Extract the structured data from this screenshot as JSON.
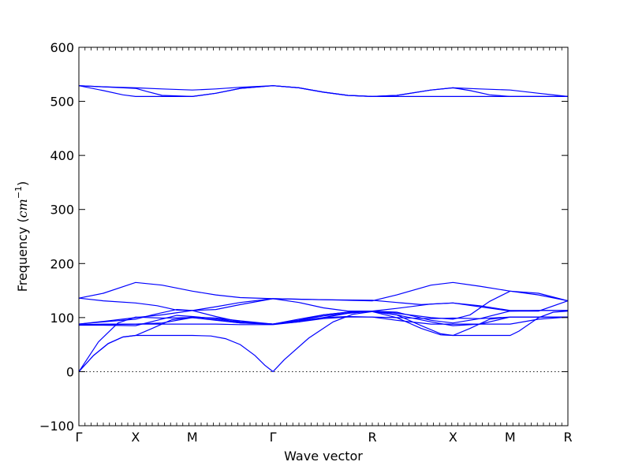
{
  "chart_data": {
    "type": "line",
    "title": "",
    "xlabel": "Wave vector",
    "ylabel_text": "Frequency (",
    "ylabel_unit": "cm",
    "ylabel_exp": "−1",
    "ylabel_close": ")",
    "ylim": [
      -100,
      600
    ],
    "yticks": [
      -100,
      0,
      100,
      200,
      300,
      400,
      500,
      600
    ],
    "ytick_labels": [
      "−100",
      "0",
      "100",
      "200",
      "300",
      "400",
      "500",
      "600"
    ],
    "xlim": [
      0,
      1
    ],
    "x_points": [
      {
        "x": 0.0,
        "label": "Γ"
      },
      {
        "x": 0.116,
        "label": "X"
      },
      {
        "x": 0.232,
        "label": "M"
      },
      {
        "x": 0.397,
        "label": "Γ"
      },
      {
        "x": 0.6,
        "label": "R"
      },
      {
        "x": 0.765,
        "label": "X"
      },
      {
        "x": 0.882,
        "label": "M"
      },
      {
        "x": 1.0,
        "label": "R"
      }
    ],
    "zero_line": true,
    "line_color": "#0000ff",
    "series": [
      {
        "values": [
          [
            0.0,
            529
          ],
          [
            0.05,
            527
          ],
          [
            0.116,
            525
          ],
          [
            0.17,
            523
          ],
          [
            0.232,
            521
          ],
          [
            0.28,
            523
          ],
          [
            0.33,
            526
          ],
          [
            0.397,
            529
          ],
          [
            0.45,
            525
          ],
          [
            0.5,
            517
          ],
          [
            0.55,
            511
          ],
          [
            0.6,
            509
          ],
          [
            0.65,
            511
          ],
          [
            0.72,
            521
          ],
          [
            0.765,
            525
          ],
          [
            0.82,
            523
          ],
          [
            0.882,
            521
          ],
          [
            0.94,
            515
          ],
          [
            1.0,
            509
          ]
        ]
      },
      {
        "values": [
          [
            0.0,
            529
          ],
          [
            0.05,
            527
          ],
          [
            0.116,
            524
          ],
          [
            0.14,
            518
          ],
          [
            0.17,
            511
          ],
          [
            0.232,
            509
          ],
          [
            0.28,
            515
          ],
          [
            0.33,
            524
          ],
          [
            0.397,
            529
          ],
          [
            0.45,
            525
          ],
          [
            0.5,
            517
          ],
          [
            0.55,
            511
          ],
          [
            0.6,
            509
          ],
          [
            0.65,
            511
          ],
          [
            0.72,
            521
          ],
          [
            0.765,
            525
          ],
          [
            0.8,
            520
          ],
          [
            0.84,
            512
          ],
          [
            0.882,
            509
          ],
          [
            0.94,
            509
          ],
          [
            1.0,
            509
          ]
        ]
      },
      {
        "values": [
          [
            0.0,
            529
          ],
          [
            0.05,
            520
          ],
          [
            0.09,
            512
          ],
          [
            0.116,
            509
          ],
          [
            0.17,
            509
          ],
          [
            0.232,
            509
          ],
          [
            0.28,
            515
          ],
          [
            0.33,
            524
          ],
          [
            0.397,
            529
          ],
          [
            0.45,
            525
          ],
          [
            0.5,
            517
          ],
          [
            0.55,
            511
          ],
          [
            0.6,
            509
          ],
          [
            0.765,
            509
          ],
          [
            0.882,
            509
          ],
          [
            1.0,
            509
          ]
        ]
      },
      {
        "values": [
          [
            0.0,
            136
          ],
          [
            0.05,
            145
          ],
          [
            0.116,
            165
          ],
          [
            0.17,
            160
          ],
          [
            0.232,
            149
          ],
          [
            0.28,
            142
          ],
          [
            0.33,
            137
          ],
          [
            0.397,
            135
          ],
          [
            0.5,
            133
          ],
          [
            0.6,
            131
          ],
          [
            0.65,
            142
          ],
          [
            0.72,
            160
          ],
          [
            0.765,
            165
          ],
          [
            0.82,
            158
          ],
          [
            0.882,
            149
          ],
          [
            0.94,
            142
          ],
          [
            1.0,
            131
          ]
        ]
      },
      {
        "values": [
          [
            0.0,
            136
          ],
          [
            0.05,
            131
          ],
          [
            0.116,
            127
          ],
          [
            0.16,
            122
          ],
          [
            0.2,
            114
          ],
          [
            0.232,
            113
          ],
          [
            0.28,
            115
          ],
          [
            0.33,
            124
          ],
          [
            0.397,
            135
          ],
          [
            0.5,
            133
          ],
          [
            0.6,
            132
          ],
          [
            0.65,
            128
          ],
          [
            0.7,
            124
          ],
          [
            0.765,
            127
          ],
          [
            0.82,
            122
          ],
          [
            0.882,
            113
          ],
          [
            0.94,
            113
          ],
          [
            1.0,
            113
          ]
        ]
      },
      {
        "values": [
          [
            0.0,
            88
          ],
          [
            0.05,
            93
          ],
          [
            0.116,
            100
          ],
          [
            0.17,
            105
          ],
          [
            0.232,
            113
          ],
          [
            0.28,
            120
          ],
          [
            0.33,
            128
          ],
          [
            0.397,
            135
          ],
          [
            0.45,
            128
          ],
          [
            0.5,
            118
          ],
          [
            0.55,
            112
          ],
          [
            0.6,
            112
          ],
          [
            0.65,
            117
          ],
          [
            0.72,
            125
          ],
          [
            0.765,
            127
          ],
          [
            0.82,
            120
          ],
          [
            0.882,
            112
          ],
          [
            0.94,
            112
          ],
          [
            1.0,
            131
          ]
        ]
      },
      {
        "values": [
          [
            0.0,
            88
          ],
          [
            0.05,
            92
          ],
          [
            0.116,
            97
          ],
          [
            0.15,
            105
          ],
          [
            0.2,
            115
          ],
          [
            0.232,
            113
          ],
          [
            0.28,
            102
          ],
          [
            0.33,
            92
          ],
          [
            0.397,
            88
          ],
          [
            0.45,
            97
          ],
          [
            0.5,
            105
          ],
          [
            0.55,
            110
          ],
          [
            0.6,
            112
          ],
          [
            0.65,
            108
          ],
          [
            0.72,
            100
          ],
          [
            0.765,
            97
          ],
          [
            0.8,
            105
          ],
          [
            0.84,
            130
          ],
          [
            0.882,
            149
          ],
          [
            0.94,
            145
          ],
          [
            1.0,
            131
          ]
        ]
      },
      {
        "values": [
          [
            0.0,
            86
          ],
          [
            0.05,
            86
          ],
          [
            0.116,
            85
          ],
          [
            0.16,
            95
          ],
          [
            0.2,
            104
          ],
          [
            0.232,
            102
          ],
          [
            0.28,
            98
          ],
          [
            0.33,
            91
          ],
          [
            0.397,
            88
          ],
          [
            0.45,
            92
          ],
          [
            0.5,
            100
          ],
          [
            0.55,
            108
          ],
          [
            0.6,
            112
          ],
          [
            0.65,
            105
          ],
          [
            0.72,
            92
          ],
          [
            0.765,
            85
          ],
          [
            0.82,
            88
          ],
          [
            0.882,
            101
          ],
          [
            1.0,
            101
          ]
        ]
      },
      {
        "values": [
          [
            0.0,
            87
          ],
          [
            0.05,
            88
          ],
          [
            0.116,
            88
          ],
          [
            0.17,
            90
          ],
          [
            0.232,
            100
          ],
          [
            0.28,
            95
          ],
          [
            0.33,
            90
          ],
          [
            0.397,
            88
          ],
          [
            0.45,
            94
          ],
          [
            0.5,
            100
          ],
          [
            0.55,
            102
          ],
          [
            0.6,
            101
          ],
          [
            0.65,
            100
          ],
          [
            0.72,
            98
          ],
          [
            0.765,
            99
          ],
          [
            0.82,
            98
          ],
          [
            0.882,
            101
          ],
          [
            1.0,
            101
          ]
        ]
      },
      {
        "values": [
          [
            0.0,
            87
          ],
          [
            0.05,
            87
          ],
          [
            0.116,
            88
          ],
          [
            0.17,
            88
          ],
          [
            0.232,
            88
          ],
          [
            0.28,
            88
          ],
          [
            0.33,
            87
          ],
          [
            0.397,
            87
          ],
          [
            0.45,
            92
          ],
          [
            0.5,
            98
          ],
          [
            0.55,
            101
          ],
          [
            0.6,
            101
          ],
          [
            0.65,
            95
          ],
          [
            0.72,
            88
          ],
          [
            0.765,
            88
          ],
          [
            0.82,
            88
          ],
          [
            0.882,
            88
          ],
          [
            0.94,
            97
          ],
          [
            1.0,
            101
          ]
        ]
      },
      {
        "values": [
          [
            0.0,
            0
          ],
          [
            0.03,
            30
          ],
          [
            0.06,
            52
          ],
          [
            0.09,
            64
          ],
          [
            0.116,
            67
          ],
          [
            0.15,
            80
          ],
          [
            0.19,
            96
          ],
          [
            0.232,
            101
          ],
          [
            0.28,
            99
          ],
          [
            0.33,
            94
          ],
          [
            0.397,
            88
          ],
          [
            0.45,
            95
          ],
          [
            0.5,
            105
          ],
          [
            0.55,
            110
          ],
          [
            0.6,
            111
          ],
          [
            0.65,
            100
          ],
          [
            0.7,
            80
          ],
          [
            0.74,
            68
          ],
          [
            0.765,
            67
          ],
          [
            0.8,
            80
          ],
          [
            0.84,
            97
          ],
          [
            0.882,
            101
          ],
          [
            1.0,
            101
          ]
        ]
      },
      {
        "values": [
          [
            0.0,
            0
          ],
          [
            0.03,
            30
          ],
          [
            0.06,
            52
          ],
          [
            0.09,
            64
          ],
          [
            0.116,
            67
          ],
          [
            0.17,
            67
          ],
          [
            0.232,
            67
          ],
          [
            0.27,
            66
          ],
          [
            0.3,
            61
          ],
          [
            0.33,
            50
          ],
          [
            0.36,
            30
          ],
          [
            0.38,
            12
          ],
          [
            0.397,
            0
          ],
          [
            0.42,
            22
          ],
          [
            0.47,
            62
          ],
          [
            0.52,
            92
          ],
          [
            0.56,
            106
          ],
          [
            0.6,
            111
          ],
          [
            0.65,
            105
          ],
          [
            0.7,
            85
          ],
          [
            0.74,
            70
          ],
          [
            0.765,
            67
          ],
          [
            0.82,
            67
          ],
          [
            0.86,
            67
          ],
          [
            0.882,
            67
          ],
          [
            0.9,
            75
          ],
          [
            0.94,
            100
          ],
          [
            0.97,
            110
          ],
          [
            1.0,
            112
          ]
        ]
      },
      {
        "values": [
          [
            0.0,
            0
          ],
          [
            0.04,
            55
          ],
          [
            0.08,
            90
          ],
          [
            0.116,
            101
          ],
          [
            0.17,
            99
          ],
          [
            0.232,
            100
          ],
          [
            0.28,
            96
          ],
          [
            0.33,
            90
          ],
          [
            0.397,
            88
          ],
          [
            0.45,
            95
          ],
          [
            0.5,
            103
          ],
          [
            0.55,
            108
          ],
          [
            0.6,
            112
          ],
          [
            0.65,
            110
          ],
          [
            0.72,
            95
          ],
          [
            0.765,
            90
          ],
          [
            0.82,
            98
          ],
          [
            0.882,
            112
          ],
          [
            0.94,
            113
          ],
          [
            1.0,
            113
          ]
        ]
      }
    ]
  }
}
